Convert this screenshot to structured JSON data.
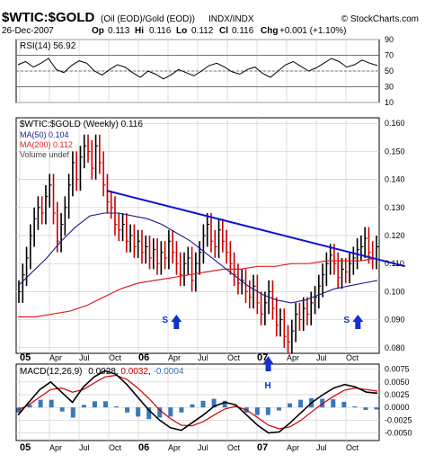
{
  "header": {
    "symbol": "$WTIC:$GOLD",
    "description": "(Oil (EOD)/Gold (EOD))",
    "exchange": "INDX/INDX",
    "copyright": "© StockCharts.com",
    "date": "26-Dec-2007",
    "op_label": "Op",
    "op": "0.113",
    "hi_label": "Hi",
    "hi": "0.116",
    "lo_label": "Lo",
    "lo": "0.112",
    "cl_label": "Cl",
    "cl": "0.116",
    "chg_label": "Chg",
    "chg": "+0.001 (+1.10%)"
  },
  "colors": {
    "price": "#000000",
    "up_bar": "#000000",
    "down_bar": "#cc0000",
    "ma50": "#1a1a8c",
    "ma200": "#e02020",
    "trendline": "#1010d0",
    "arrow": "#1030d0",
    "rsi_line": "#000000",
    "macd_line": "#000000",
    "signal_line": "#cc0000",
    "histogram": "#3a78b8",
    "grid": "#cfcfcf"
  },
  "x_axis_labels": [
    "05",
    "Apr",
    "Jul",
    "Oct",
    "06",
    "Apr",
    "Jul",
    "Oct",
    "07",
    "Apr",
    "Jul",
    "Oct"
  ],
  "chart_data": [
    {
      "type": "line",
      "panel": "rsi",
      "legend": "RSI(14) 56.92",
      "ylim": [
        10,
        90
      ],
      "ticks": [
        90,
        70,
        50,
        30,
        10
      ],
      "reference_lines": [
        70,
        50,
        30
      ],
      "series": [
        {
          "name": "RSI(14)",
          "values": [
            58,
            62,
            55,
            60,
            66,
            52,
            48,
            57,
            63,
            60,
            50,
            45,
            52,
            58,
            55,
            48,
            42,
            50,
            46,
            40,
            45,
            52,
            48,
            44,
            50,
            57,
            60,
            55,
            49,
            46,
            52,
            55,
            47,
            42,
            50,
            58,
            62,
            56,
            50,
            54,
            60,
            66,
            62,
            55,
            58,
            64,
            60,
            57
          ]
        }
      ]
    },
    {
      "type": "line",
      "panel": "price",
      "legend": [
        "$WTIC:$GOLD (Weekly) 0.116",
        "MA(50) 0.104",
        "MA(200) 0.112",
        "Volume undef"
      ],
      "ylim": [
        0.078,
        0.162
      ],
      "ticks": [
        0.16,
        0.15,
        0.14,
        0.13,
        0.12,
        0.11,
        0.1,
        0.09,
        0.08
      ],
      "x_start": "2005-01",
      "x_end": "2007-12",
      "series": [
        {
          "name": "$WTIC:$GOLD (Weekly)",
          "values": [
            0.1,
            0.106,
            0.112,
            0.12,
            0.126,
            0.13,
            0.128,
            0.134,
            0.138,
            0.128,
            0.118,
            0.124,
            0.13,
            0.138,
            0.146,
            0.14,
            0.148,
            0.152,
            0.15,
            0.144,
            0.152,
            0.146,
            0.138,
            0.132,
            0.13,
            0.124,
            0.122,
            0.124,
            0.118,
            0.12,
            0.116,
            0.118,
            0.114,
            0.116,
            0.112,
            0.115,
            0.11,
            0.114,
            0.112,
            0.118,
            0.114,
            0.11,
            0.106,
            0.11,
            0.112,
            0.104,
            0.11,
            0.114,
            0.12,
            0.124,
            0.118,
            0.116,
            0.122,
            0.118,
            0.114,
            0.11,
            0.106,
            0.103,
            0.104,
            0.1,
            0.098,
            0.102,
            0.096,
            0.092,
            0.096,
            0.1,
            0.094,
            0.088,
            0.09,
            0.084,
            0.082,
            0.086,
            0.092,
            0.09,
            0.094,
            0.092,
            0.096,
            0.098,
            0.102,
            0.106,
            0.11,
            0.113,
            0.11,
            0.105,
            0.108,
            0.107,
            0.11,
            0.112,
            0.115,
            0.116,
            0.119,
            0.114,
            0.112,
            0.116
          ]
        },
        {
          "name": "MA(50)",
          "values": [
            0.102,
            0.107,
            0.112,
            0.118,
            0.123,
            0.127,
            0.128,
            0.128,
            0.127,
            0.126,
            0.124,
            0.121,
            0.118,
            0.114,
            0.11,
            0.106,
            0.102,
            0.099,
            0.097,
            0.096,
            0.097,
            0.099,
            0.101,
            0.102,
            0.103,
            0.104
          ]
        },
        {
          "name": "MA(200)",
          "values": [
            0.091,
            0.091,
            0.092,
            0.093,
            0.095,
            0.098,
            0.101,
            0.103,
            0.104,
            0.105,
            0.106,
            0.107,
            0.108,
            0.108,
            0.109,
            0.109,
            0.11,
            0.11,
            0.111,
            0.111,
            0.111,
            0.112
          ]
        }
      ],
      "trendline": {
        "from": [
          "2005-10",
          0.136
        ],
        "to": [
          "2007-12",
          0.11
        ]
      },
      "annotations": [
        {
          "text": "S",
          "x": "2006-04"
        },
        {
          "text": "H",
          "x": "2007-02"
        },
        {
          "text": "S",
          "x": "2007-10"
        }
      ]
    },
    {
      "type": "line",
      "panel": "macd",
      "legend_prefix": "MACD(12,26,9)",
      "legend_values": [
        "0.0028",
        "0.0032",
        "-0.0004"
      ],
      "ylim": [
        -0.0065,
        0.0085
      ],
      "ticks": [
        0.0075,
        0.005,
        0.0025,
        0.0,
        -0.0025,
        -0.005
      ],
      "tick_labels": [
        "0.0075",
        "0.0050",
        "0.0025",
        "0.0000",
        "-0.0025",
        "-0.0050"
      ],
      "series": [
        {
          "name": "MACD(12,26,9)",
          "values": [
            -0.0015,
            0.001,
            0.0035,
            0.005,
            0.003,
            0.001,
            0.004,
            0.006,
            0.0072,
            0.0065,
            0.0045,
            0.002,
            -0.0005,
            -0.0025,
            -0.004,
            -0.0045,
            -0.003,
            -0.0015,
            0.0002,
            0.001,
            0.0005,
            -0.0015,
            -0.0035,
            -0.005,
            -0.0048,
            -0.003,
            -0.001,
            0.001,
            0.0025,
            0.0038,
            0.0045,
            0.004,
            0.003,
            0.0028
          ]
        },
        {
          "name": "Signal",
          "values": [
            -0.0005,
            0.0005,
            0.002,
            0.0035,
            0.0038,
            0.003,
            0.0035,
            0.0048,
            0.006,
            0.0063,
            0.0055,
            0.0038,
            0.0018,
            -0.0005,
            -0.0022,
            -0.0035,
            -0.0036,
            -0.0028,
            -0.0015,
            -0.0003,
            0.0002,
            -0.0005,
            -0.002,
            -0.0035,
            -0.0042,
            -0.0038,
            -0.0025,
            -0.0008,
            0.0008,
            0.0022,
            0.0034,
            0.0038,
            0.0035,
            0.0032
          ]
        },
        {
          "name": "Histogram",
          "values": [
            -0.001,
            0.0005,
            0.0015,
            0.0015,
            -0.0008,
            -0.002,
            0.0005,
            0.0012,
            0.0012,
            0.0002,
            -0.001,
            -0.0018,
            -0.0023,
            -0.002,
            -0.0018,
            -0.001,
            0.0006,
            0.0013,
            0.0017,
            0.0013,
            0.0003,
            -0.001,
            -0.0015,
            -0.0015,
            -0.0006,
            0.0008,
            0.0015,
            0.0018,
            0.0017,
            0.0016,
            0.0011,
            0.0002,
            -0.0005,
            -0.0004
          ]
        }
      ]
    }
  ]
}
